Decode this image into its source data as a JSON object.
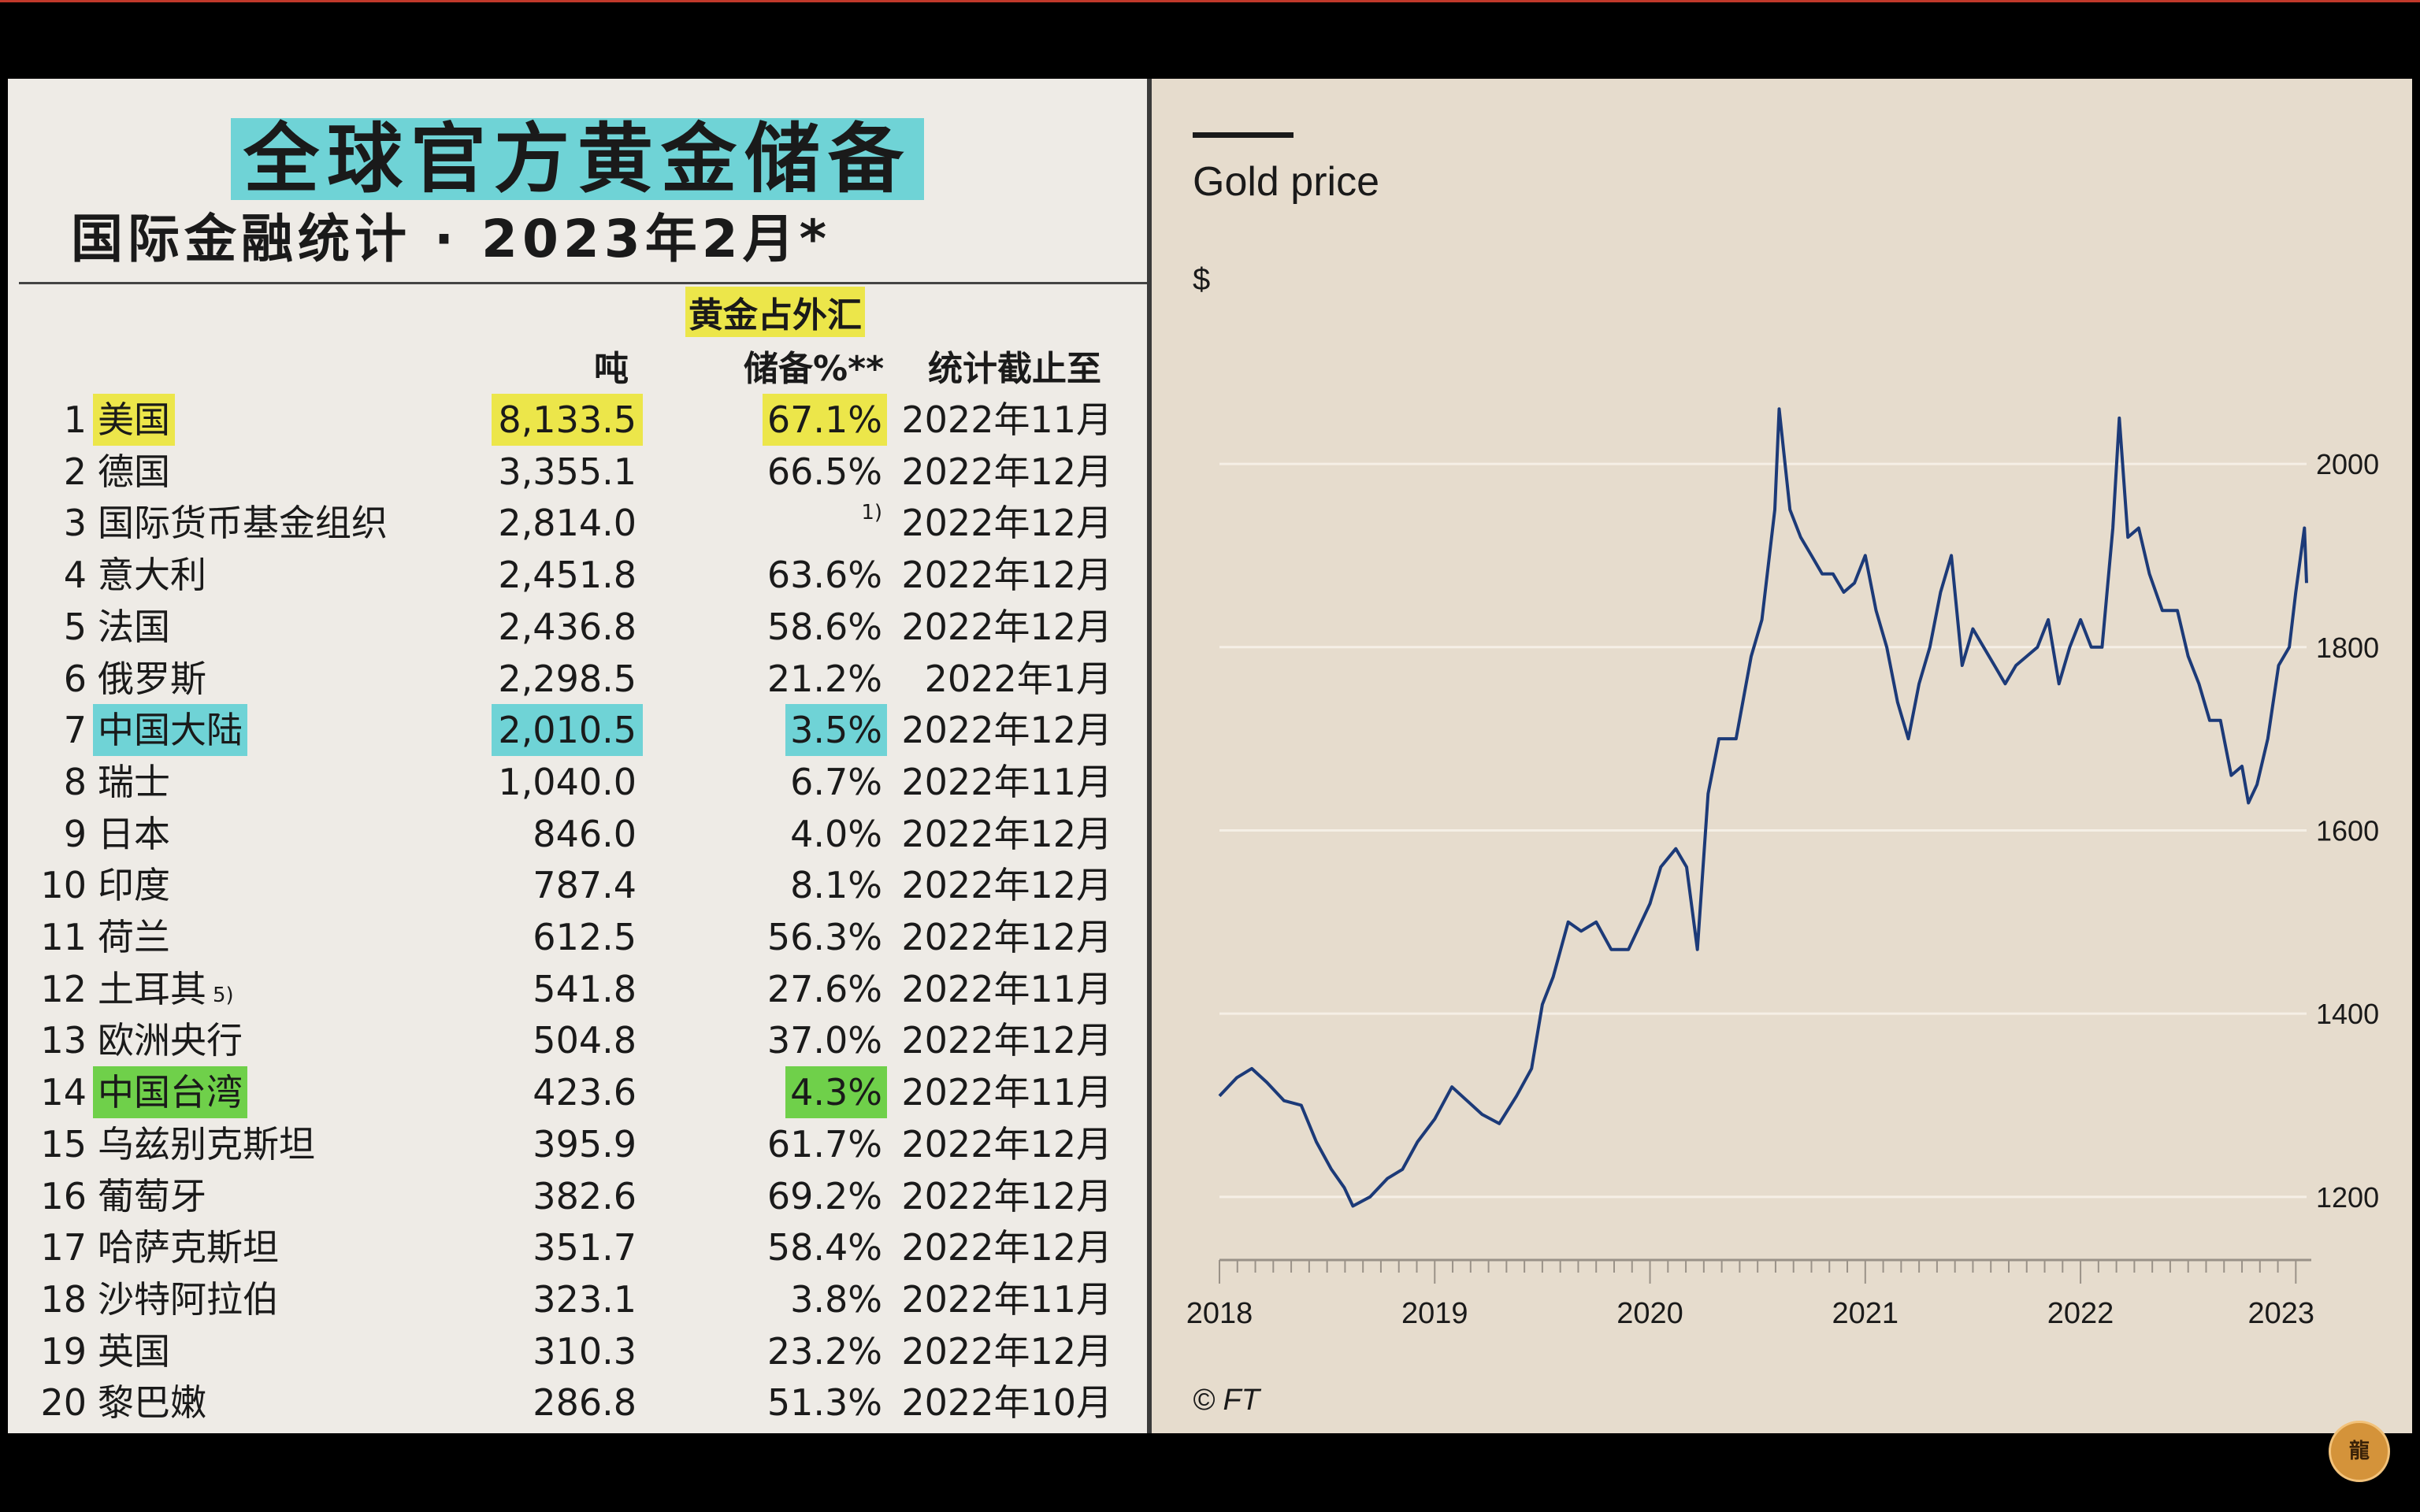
{
  "table": {
    "title": "全球官方黄金储备",
    "subtitle": "国际金融统计 · 2023年2月*",
    "col_tons": "吨",
    "col_pct_line1": "黄金占外汇",
    "col_pct_line2": "储备%**",
    "col_date": "统计截止至",
    "rows": [
      {
        "rank": "1",
        "name": "美国",
        "tons": "8,133.5",
        "pct": "67.1%",
        "date": "2022年11月"
      },
      {
        "rank": "2",
        "name": "德国",
        "tons": "3,355.1",
        "pct": "66.5%",
        "date": "2022年12月"
      },
      {
        "rank": "3",
        "name": "国际货币基金组织",
        "tons": "2,814.0",
        "pct": "1)",
        "date": "2022年12月"
      },
      {
        "rank": "4",
        "name": "意大利",
        "tons": "2,451.8",
        "pct": "63.6%",
        "date": "2022年12月"
      },
      {
        "rank": "5",
        "name": "法国",
        "tons": "2,436.8",
        "pct": "58.6%",
        "date": "2022年12月"
      },
      {
        "rank": "6",
        "name": "俄罗斯",
        "tons": "2,298.5",
        "pct": "21.2%",
        "date": "2022年1月"
      },
      {
        "rank": "7",
        "name": "中国大陆",
        "tons": "2,010.5",
        "pct": "3.5%",
        "date": "2022年12月"
      },
      {
        "rank": "8",
        "name": "瑞士",
        "tons": "1,040.0",
        "pct": "6.7%",
        "date": "2022年11月"
      },
      {
        "rank": "9",
        "name": "日本",
        "tons": "846.0",
        "pct": "4.0%",
        "date": "2022年12月"
      },
      {
        "rank": "10",
        "name": "印度",
        "tons": "787.4",
        "pct": "8.1%",
        "date": "2022年12月"
      },
      {
        "rank": "11",
        "name": "荷兰",
        "tons": "612.5",
        "pct": "56.3%",
        "date": "2022年12月"
      },
      {
        "rank": "12",
        "name": "土耳其",
        "name_sup": "5)",
        "tons": "541.8",
        "pct": "27.6%",
        "date": "2022年11月"
      },
      {
        "rank": "13",
        "name": "欧洲央行",
        "tons": "504.8",
        "pct": "37.0%",
        "date": "2022年12月"
      },
      {
        "rank": "14",
        "name": "中国台湾",
        "tons": "423.6",
        "pct": "4.3%",
        "date": "2022年11月"
      },
      {
        "rank": "15",
        "name": "乌兹别克斯坦",
        "tons": "395.9",
        "pct": "61.7%",
        "date": "2022年12月"
      },
      {
        "rank": "16",
        "name": "葡萄牙",
        "tons": "382.6",
        "pct": "69.2%",
        "date": "2022年12月"
      },
      {
        "rank": "17",
        "name": "哈萨克斯坦",
        "tons": "351.7",
        "pct": "58.4%",
        "date": "2022年12月"
      },
      {
        "rank": "18",
        "name": "沙特阿拉伯",
        "tons": "323.1",
        "pct": "3.8%",
        "date": "2022年11月"
      },
      {
        "rank": "19",
        "name": "英国",
        "tons": "310.3",
        "pct": "23.2%",
        "date": "2022年12月"
      },
      {
        "rank": "20",
        "name": "黎巴嫩",
        "tons": "286.8",
        "pct": "51.3%",
        "date": "2022年10月"
      }
    ]
  },
  "colors": {
    "highlight_yellow": "#ece64a",
    "highlight_cyan": "#6fd3d6",
    "highlight_green": "#6fd04a",
    "line": "#1c3a78",
    "chart_bg": "#e6dccd",
    "table_bg": "#eeebe6"
  },
  "chart_data": {
    "type": "line",
    "title": "Gold price",
    "ylabel": "$",
    "source": "© FT",
    "xlim": [
      2018.0,
      2023.05
    ],
    "ylim": [
      1150,
      2080
    ],
    "yticks": [
      1200,
      1400,
      1600,
      1800,
      2000
    ],
    "xticks": [
      "2018",
      "2019",
      "2020",
      "2021",
      "2022",
      "2023"
    ],
    "grid": true,
    "series": [
      {
        "x": [
          2018.0,
          2018.08,
          2018.15,
          2018.22,
          2018.3,
          2018.38,
          2018.45,
          2018.52,
          2018.58,
          2018.62,
          2018.7,
          2018.78,
          2018.85,
          2018.92,
          2019.0,
          2019.08,
          2019.15,
          2019.22,
          2019.3,
          2019.38,
          2019.45,
          2019.5,
          2019.55,
          2019.62,
          2019.68,
          2019.75,
          2019.82,
          2019.9,
          2020.0,
          2020.05,
          2020.12,
          2020.17,
          2020.22,
          2020.27,
          2020.32,
          2020.4,
          2020.47,
          2020.52,
          2020.58,
          2020.6,
          2020.65,
          2020.7,
          2020.75,
          2020.8,
          2020.85,
          2020.9,
          2020.95,
          2021.0,
          2021.05,
          2021.1,
          2021.15,
          2021.2,
          2021.25,
          2021.3,
          2021.35,
          2021.4,
          2021.45,
          2021.5,
          2021.55,
          2021.6,
          2021.65,
          2021.7,
          2021.75,
          2021.8,
          2021.85,
          2021.9,
          2021.95,
          2022.0,
          2022.05,
          2022.1,
          2022.15,
          2022.18,
          2022.22,
          2022.27,
          2022.32,
          2022.38,
          2022.45,
          2022.5,
          2022.55,
          2022.6,
          2022.65,
          2022.7,
          2022.75,
          2022.78,
          2022.82,
          2022.87,
          2022.92,
          2022.97,
          2023.0,
          2023.04,
          2023.05
        ],
        "y": [
          1310,
          1330,
          1340,
          1325,
          1305,
          1300,
          1260,
          1230,
          1210,
          1190,
          1200,
          1220,
          1230,
          1260,
          1285,
          1320,
          1305,
          1290,
          1280,
          1310,
          1340,
          1410,
          1440,
          1500,
          1490,
          1500,
          1470,
          1470,
          1520,
          1560,
          1580,
          1560,
          1470,
          1640,
          1700,
          1700,
          1790,
          1830,
          1950,
          2060,
          1950,
          1920,
          1900,
          1880,
          1880,
          1860,
          1870,
          1900,
          1840,
          1800,
          1740,
          1700,
          1760,
          1800,
          1860,
          1900,
          1780,
          1820,
          1800,
          1780,
          1760,
          1780,
          1790,
          1800,
          1830,
          1760,
          1800,
          1830,
          1800,
          1800,
          1930,
          2050,
          1920,
          1930,
          1880,
          1840,
          1840,
          1790,
          1760,
          1720,
          1720,
          1660,
          1670,
          1630,
          1650,
          1700,
          1780,
          1800,
          1860,
          1930,
          1870
        ]
      }
    ]
  }
}
